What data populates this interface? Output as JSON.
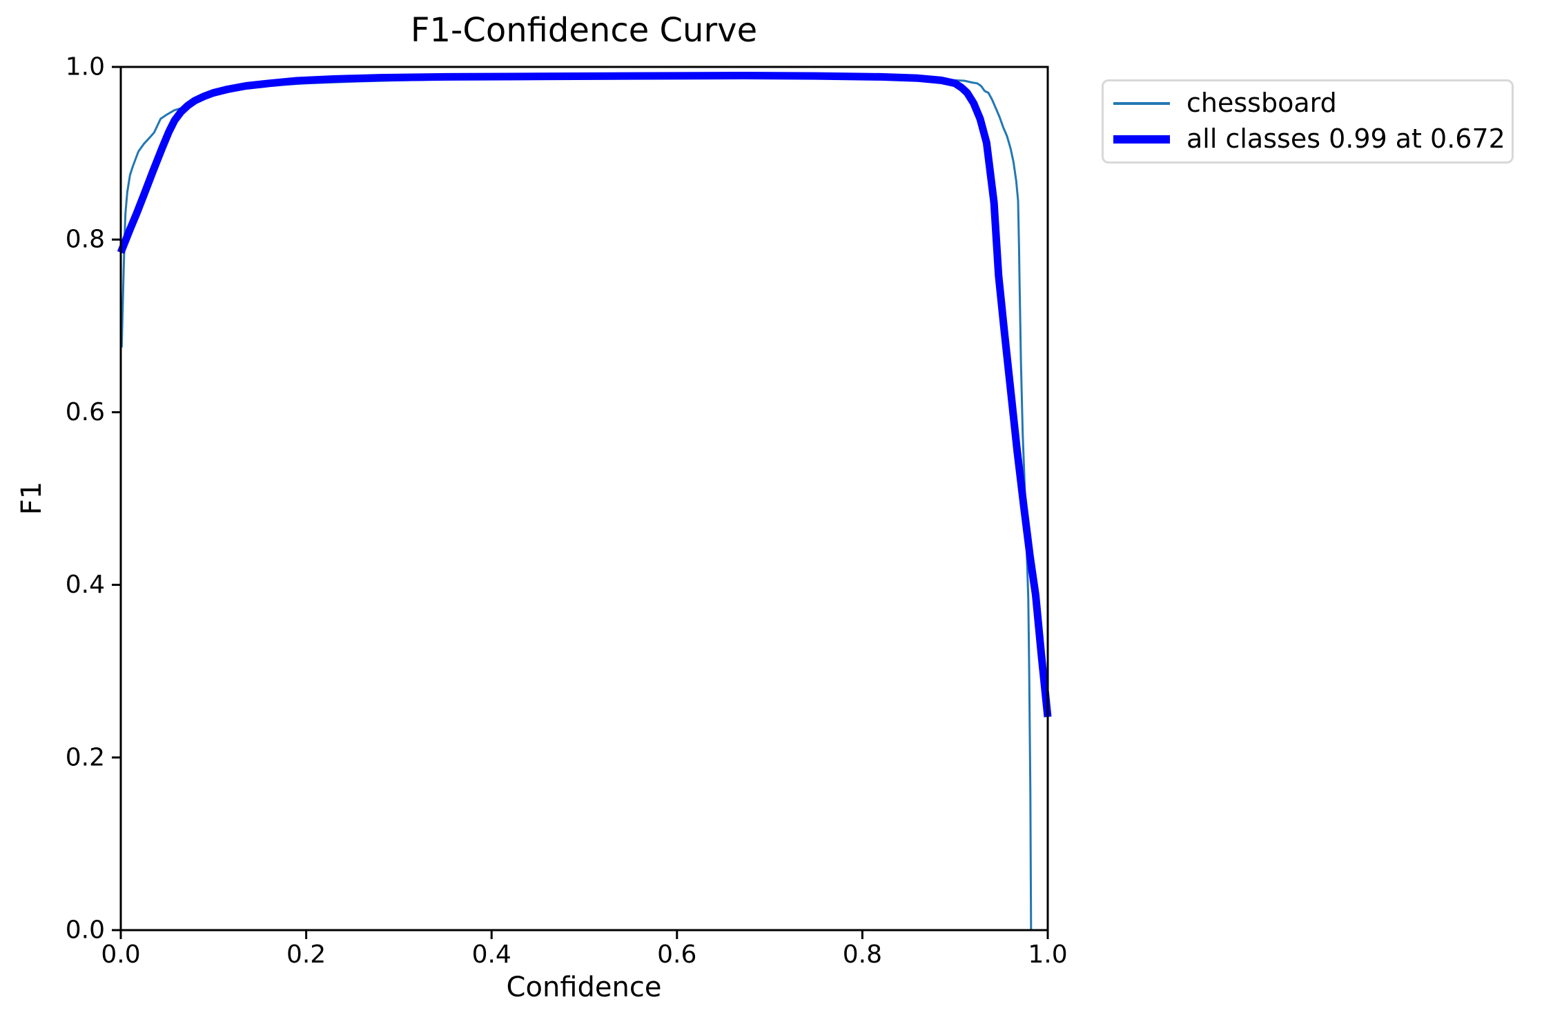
{
  "figure": {
    "title": "F1-Confidence Curve",
    "xlabel": "Confidence",
    "ylabel": "F1"
  },
  "legend": {
    "border_color": "#d8d8d8",
    "items": [
      {
        "label": "chessboard",
        "color": "#2277b4",
        "line_weight": "thin"
      },
      {
        "label": "all classes 0.99 at 0.672",
        "color": "#0000ff",
        "line_weight": "thick"
      }
    ]
  },
  "chart_data": {
    "type": "line",
    "title": "F1-Confidence Curve",
    "xlabel": "Confidence",
    "ylabel": "F1",
    "xlim": [
      0.0,
      1.0
    ],
    "ylim": [
      0.0,
      1.0
    ],
    "grid": false,
    "legend_position": "outside upper right",
    "axis_color": "#000000",
    "xticks": {
      "values": [
        0.0,
        0.2,
        0.4,
        0.6,
        0.8,
        1.0
      ],
      "labels": [
        "0.0",
        "0.2",
        "0.4",
        "0.6",
        "0.8",
        "1.0"
      ]
    },
    "yticks": {
      "values": [
        0.0,
        0.2,
        0.4,
        0.6,
        0.8,
        1.0
      ],
      "labels": [
        "0.0",
        "0.2",
        "0.4",
        "0.6",
        "0.8",
        "1.0"
      ]
    },
    "series": [
      {
        "name": "chessboard",
        "color": "#2277b4",
        "linewidth": 3,
        "points": [
          [
            0.001,
            0.675
          ],
          [
            0.003,
            0.76
          ],
          [
            0.004,
            0.8
          ],
          [
            0.005,
            0.83
          ],
          [
            0.007,
            0.855
          ],
          [
            0.01,
            0.875
          ],
          [
            0.013,
            0.885
          ],
          [
            0.019,
            0.902
          ],
          [
            0.025,
            0.911
          ],
          [
            0.031,
            0.918
          ],
          [
            0.036,
            0.924
          ],
          [
            0.043,
            0.94
          ],
          [
            0.05,
            0.945
          ],
          [
            0.058,
            0.95
          ],
          [
            0.065,
            0.952
          ],
          [
            0.075,
            0.956
          ],
          [
            0.08,
            0.96
          ],
          [
            0.095,
            0.9655
          ],
          [
            0.115,
            0.9715
          ],
          [
            0.14,
            0.976
          ],
          [
            0.17,
            0.979
          ],
          [
            0.2,
            0.981
          ],
          [
            0.25,
            0.983
          ],
          [
            0.3,
            0.9845
          ],
          [
            0.35,
            0.9855
          ],
          [
            0.4,
            0.986
          ],
          [
            0.5,
            0.9865
          ],
          [
            0.6,
            0.987
          ],
          [
            0.7,
            0.987
          ],
          [
            0.8,
            0.9865
          ],
          [
            0.85,
            0.986
          ],
          [
            0.88,
            0.9855
          ],
          [
            0.9,
            0.9845
          ],
          [
            0.91,
            0.984
          ],
          [
            0.918,
            0.982
          ],
          [
            0.924,
            0.981
          ],
          [
            0.928,
            0.978
          ],
          [
            0.932,
            0.972
          ],
          [
            0.936,
            0.97
          ],
          [
            0.94,
            0.962
          ],
          [
            0.944,
            0.952
          ],
          [
            0.948,
            0.942
          ],
          [
            0.952,
            0.93
          ],
          [
            0.956,
            0.92
          ],
          [
            0.96,
            0.905
          ],
          [
            0.963,
            0.89
          ],
          [
            0.966,
            0.868
          ],
          [
            0.968,
            0.845
          ],
          [
            0.969,
            0.79
          ],
          [
            0.9695,
            0.758
          ],
          [
            0.971,
            0.66
          ],
          [
            0.973,
            0.575
          ],
          [
            0.975,
            0.518
          ],
          [
            0.977,
            0.45
          ],
          [
            0.979,
            0.384
          ],
          [
            0.98,
            0.3
          ],
          [
            0.9812,
            0.16
          ],
          [
            0.982,
            0.0
          ]
        ]
      },
      {
        "name": "all classes 0.99 at 0.672",
        "color": "#0000ff",
        "linewidth": 11,
        "points": [
          [
            0.0,
            0.785
          ],
          [
            0.01,
            0.812
          ],
          [
            0.017,
            0.83
          ],
          [
            0.025,
            0.852
          ],
          [
            0.035,
            0.88
          ],
          [
            0.045,
            0.907
          ],
          [
            0.052,
            0.925
          ],
          [
            0.058,
            0.938
          ],
          [
            0.065,
            0.948
          ],
          [
            0.072,
            0.955
          ],
          [
            0.08,
            0.961
          ],
          [
            0.09,
            0.966
          ],
          [
            0.1,
            0.97
          ],
          [
            0.115,
            0.974
          ],
          [
            0.135,
            0.978
          ],
          [
            0.16,
            0.981
          ],
          [
            0.19,
            0.984
          ],
          [
            0.23,
            0.986
          ],
          [
            0.28,
            0.9875
          ],
          [
            0.35,
            0.9885
          ],
          [
            0.45,
            0.989
          ],
          [
            0.55,
            0.9895
          ],
          [
            0.672,
            0.99
          ],
          [
            0.75,
            0.9895
          ],
          [
            0.82,
            0.9885
          ],
          [
            0.86,
            0.987
          ],
          [
            0.885,
            0.9845
          ],
          [
            0.9,
            0.981
          ],
          [
            0.907,
            0.976
          ],
          [
            0.913,
            0.97
          ],
          [
            0.92,
            0.958
          ],
          [
            0.927,
            0.94
          ],
          [
            0.934,
            0.912
          ],
          [
            0.942,
            0.843
          ],
          [
            0.947,
            0.758
          ],
          [
            0.953,
            0.695
          ],
          [
            0.96,
            0.625
          ],
          [
            0.967,
            0.555
          ],
          [
            0.974,
            0.492
          ],
          [
            0.981,
            0.432
          ],
          [
            0.987,
            0.388
          ],
          [
            0.993,
            0.32
          ],
          [
            1.0,
            0.247
          ]
        ]
      }
    ]
  }
}
